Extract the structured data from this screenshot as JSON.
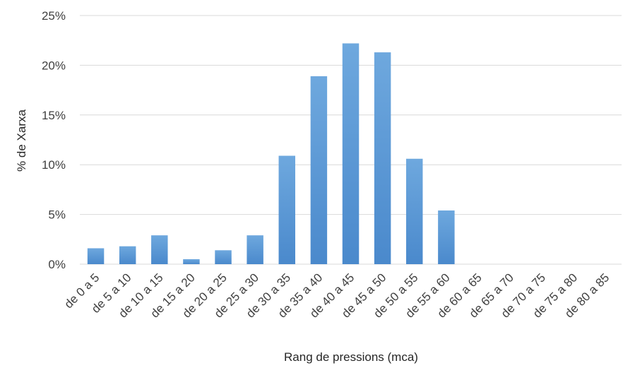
{
  "chart_data": {
    "type": "bar",
    "title": "",
    "xlabel": "Rang de pressions (mca)",
    "ylabel": "% de Xarxa",
    "categories": [
      "de 0 a 5",
      "de 5 a 10",
      "de 10 a 15",
      "de 15 a 20",
      "de 20 a 25",
      "de 25 a 30",
      "de 30 a 35",
      "de 35 a 40",
      "de 40 a 45",
      "de 45 a 50",
      "de 50 a 55",
      "de 55 a 60",
      "de 60 a 65",
      "de 65 a 70",
      "de 70 a 75",
      "de 75 a 80",
      "de 80 a 85"
    ],
    "values": [
      1.6,
      1.8,
      2.9,
      0.5,
      1.4,
      2.9,
      10.9,
      18.9,
      22.2,
      21.3,
      10.6,
      5.4,
      0,
      0,
      0,
      0,
      0
    ],
    "ylim": [
      0,
      25
    ],
    "yticks": [
      0,
      5,
      10,
      15,
      20,
      25
    ],
    "ytick_labels": [
      "0%",
      "5%",
      "10%",
      "15%",
      "20%",
      "25%"
    ],
    "grid": true,
    "bar_color": "#5b9bd5"
  }
}
